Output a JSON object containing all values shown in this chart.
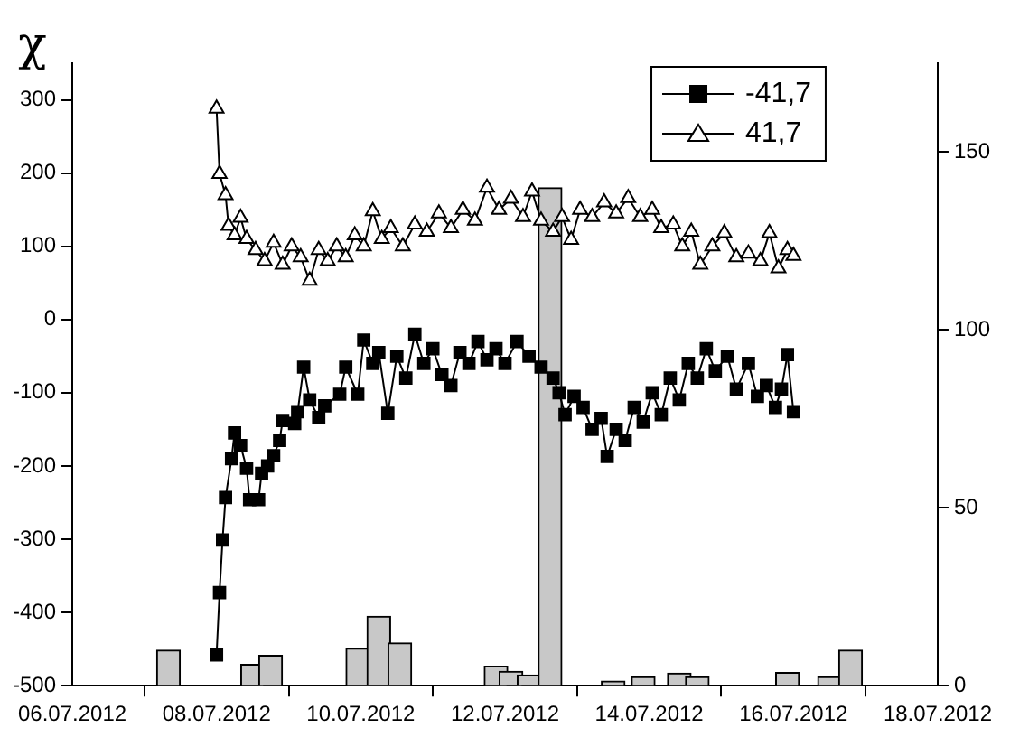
{
  "chart_data": {
    "type": "line",
    "ylabel": "χ",
    "xlim": [
      "2012-07-06",
      "2012-07-18"
    ],
    "xticks": [
      {
        "value": "2012-07-06",
        "label": "06.07.2012"
      },
      {
        "value": "2012-07-08",
        "label": "08.07.2012"
      },
      {
        "value": "2012-07-10",
        "label": "10.07.2012"
      },
      {
        "value": "2012-07-12",
        "label": "12.07.2012"
      },
      {
        "value": "2012-07-14",
        "label": "14.07.2012"
      },
      {
        "value": "2012-07-16",
        "label": "16.07.2012"
      },
      {
        "value": "2012-07-18",
        "label": "18.07.2012"
      }
    ],
    "ylim": [
      -500,
      350
    ],
    "yticks": [
      -500,
      -400,
      -300,
      -200,
      -100,
      0,
      100,
      200,
      300
    ],
    "y2lim": [
      0,
      175
    ],
    "y2ticks": [
      0,
      50,
      100,
      150
    ],
    "grid": false,
    "legend": "top right",
    "series": [
      {
        "type": "bar",
        "axis": "y2",
        "color": "#c8c8c8",
        "x": [
          "2012-07-07T08:00",
          "2012-07-08T12:00",
          "2012-07-08T18:00",
          "2012-07-09T23:00",
          "2012-07-10T06:00",
          "2012-07-10T13:00",
          "2012-07-11T21:00",
          "2012-07-12T02:00",
          "2012-07-12T08:00",
          "2012-07-12T15:00",
          "2012-07-13T12:00",
          "2012-07-13T22:00",
          "2012-07-14T10:00",
          "2012-07-14T16:00",
          "2012-07-15T22:00",
          "2012-07-16T12:00",
          "2012-07-16T19:00"
        ],
        "values": [
          10,
          6,
          8.5,
          10.5,
          19.5,
          12,
          5.5,
          4,
          3,
          140,
          1.3,
          2.5,
          3.5,
          2.5,
          3.7,
          2.5,
          10
        ]
      },
      {
        "name": "-41,7",
        "marker": "square",
        "color": "#000000",
        "x": [
          "2012-07-08T00:00",
          "2012-07-08T01:00",
          "2012-07-08T02:00",
          "2012-07-08T03:00",
          "2012-07-08T05:00",
          "2012-07-08T06:00",
          "2012-07-08T08:00",
          "2012-07-08T10:00",
          "2012-07-08T11:00",
          "2012-07-08T14:00",
          "2012-07-08T15:00",
          "2012-07-08T17:00",
          "2012-07-08T19:00",
          "2012-07-08T21:00",
          "2012-07-08T22:00",
          "2012-07-09T02:00",
          "2012-07-09T03:00",
          "2012-07-09T05:00",
          "2012-07-09T07:00",
          "2012-07-09T10:00",
          "2012-07-09T12:00",
          "2012-07-09T17:00",
          "2012-07-09T19:00",
          "2012-07-09T23:00",
          "2012-07-10T01:00",
          "2012-07-10T04:00",
          "2012-07-10T06:00",
          "2012-07-10T09:00",
          "2012-07-10T12:00",
          "2012-07-10T15:00",
          "2012-07-10T18:00",
          "2012-07-10T21:00",
          "2012-07-11T00:00",
          "2012-07-11T03:00",
          "2012-07-11T06:00",
          "2012-07-11T09:00",
          "2012-07-11T12:00",
          "2012-07-11T15:00",
          "2012-07-11T18:00",
          "2012-07-11T21:00",
          "2012-07-12T00:00",
          "2012-07-12T04:00",
          "2012-07-12T08:00",
          "2012-07-12T12:00",
          "2012-07-12T16:00",
          "2012-07-12T18:00",
          "2012-07-12T20:00",
          "2012-07-12T23:00",
          "2012-07-13T02:00",
          "2012-07-13T05:00",
          "2012-07-13T08:00",
          "2012-07-13T10:00",
          "2012-07-13T13:00",
          "2012-07-13T16:00",
          "2012-07-13T19:00",
          "2012-07-13T22:00",
          "2012-07-14T01:00",
          "2012-07-14T04:00",
          "2012-07-14T07:00",
          "2012-07-14T10:00",
          "2012-07-14T13:00",
          "2012-07-14T16:00",
          "2012-07-14T19:00",
          "2012-07-14T22:00",
          "2012-07-15T02:00",
          "2012-07-15T05:00",
          "2012-07-15T09:00",
          "2012-07-15T12:00",
          "2012-07-15T15:00",
          "2012-07-15T18:00",
          "2012-07-15T20:00",
          "2012-07-15T22:00",
          "2012-07-16T00:00"
        ],
        "values": [
          -458,
          -373,
          -301,
          -243,
          -190,
          -155,
          -172,
          -203,
          -246,
          -246,
          -210,
          -200,
          -186,
          -165,
          -138,
          -142,
          -126,
          -65,
          -110,
          -134,
          -118,
          -102,
          -65,
          -102,
          -28,
          -60,
          -45,
          -128,
          -50,
          -80,
          -20,
          -60,
          -40,
          -75,
          -90,
          -45,
          -60,
          -30,
          -55,
          -40,
          -60,
          -30,
          -50,
          -65,
          -80,
          -100,
          -130,
          -105,
          -120,
          -150,
          -135,
          -187,
          -150,
          -165,
          -120,
          -140,
          -100,
          -130,
          -80,
          -110,
          -60,
          -80,
          -40,
          -70,
          -50,
          -95,
          -60,
          -105,
          -90,
          -120,
          -95,
          -48,
          -126
        ]
      },
      {
        "name": "41,7",
        "marker": "triangle",
        "color": "#000000",
        "x": [
          "2012-07-08T00:00",
          "2012-07-08T01:00",
          "2012-07-08T03:00",
          "2012-07-08T04:00",
          "2012-07-08T06:00",
          "2012-07-08T08:00",
          "2012-07-08T10:00",
          "2012-07-08T13:00",
          "2012-07-08T16:00",
          "2012-07-08T19:00",
          "2012-07-08T22:00",
          "2012-07-09T01:00",
          "2012-07-09T04:00",
          "2012-07-09T07:00",
          "2012-07-09T10:00",
          "2012-07-09T13:00",
          "2012-07-09T16:00",
          "2012-07-09T19:00",
          "2012-07-09T22:00",
          "2012-07-10T01:00",
          "2012-07-10T04:00",
          "2012-07-10T07:00",
          "2012-07-10T10:00",
          "2012-07-10T14:00",
          "2012-07-10T18:00",
          "2012-07-10T22:00",
          "2012-07-11T02:00",
          "2012-07-11T06:00",
          "2012-07-11T10:00",
          "2012-07-11T14:00",
          "2012-07-11T18:00",
          "2012-07-11T22:00",
          "2012-07-12T02:00",
          "2012-07-12T06:00",
          "2012-07-12T09:00",
          "2012-07-12T12:00",
          "2012-07-12T16:00",
          "2012-07-12T19:00",
          "2012-07-12T22:00",
          "2012-07-13T01:00",
          "2012-07-13T05:00",
          "2012-07-13T09:00",
          "2012-07-13T13:00",
          "2012-07-13T17:00",
          "2012-07-13T21:00",
          "2012-07-14T01:00",
          "2012-07-14T04:00",
          "2012-07-14T08:00",
          "2012-07-14T11:00",
          "2012-07-14T14:00",
          "2012-07-14T17:00",
          "2012-07-14T21:00",
          "2012-07-15T01:00",
          "2012-07-15T05:00",
          "2012-07-15T09:00",
          "2012-07-15T13:00",
          "2012-07-15T16:00",
          "2012-07-15T19:00",
          "2012-07-15T22:00",
          "2012-07-16T00:00"
        ],
        "values": [
          288,
          199,
          170,
          128,
          115,
          139,
          110,
          95,
          80,
          105,
          75,
          100,
          85,
          53,
          95,
          80,
          100,
          85,
          115,
          100,
          148,
          110,
          125,
          100,
          130,
          120,
          145,
          125,
          150,
          135,
          180,
          150,
          165,
          140,
          175,
          135,
          120,
          140,
          109,
          150,
          140,
          160,
          145,
          166,
          140,
          150,
          125,
          130,
          100,
          120,
          75,
          100,
          118,
          85,
          90,
          80,
          118,
          70,
          95,
          87
        ]
      }
    ]
  }
}
